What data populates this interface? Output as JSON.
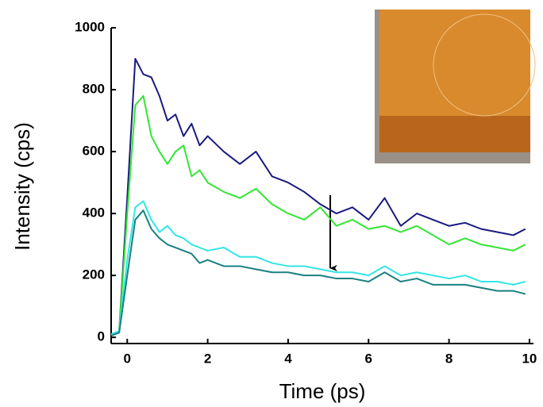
{
  "chart_data": {
    "type": "line",
    "xlabel": "Time (ps)",
    "ylabel": "Intensity (cps)",
    "x": [
      -0.4,
      -0.2,
      0,
      0.2,
      0.4,
      0.6,
      0.8,
      1.0,
      1.2,
      1.4,
      1.6,
      1.8,
      2.0,
      2.4,
      2.8,
      3.2,
      3.6,
      4.0,
      4.4,
      4.8,
      5.2,
      5.6,
      6.0,
      6.4,
      6.8,
      7.2,
      7.6,
      8.0,
      8.4,
      8.8,
      9.2,
      9.6,
      9.9
    ],
    "series": [
      {
        "color": "#1a1a80",
        "values": [
          10,
          20,
          450,
          900,
          850,
          840,
          780,
          700,
          720,
          650,
          690,
          620,
          650,
          600,
          560,
          600,
          520,
          500,
          470,
          430,
          400,
          420,
          380,
          450,
          360,
          400,
          380,
          360,
          370,
          350,
          340,
          330,
          350
        ]
      },
      {
        "color": "#33e633",
        "values": [
          10,
          20,
          400,
          750,
          780,
          650,
          600,
          560,
          600,
          620,
          520,
          540,
          500,
          470,
          450,
          480,
          430,
          400,
          380,
          420,
          360,
          380,
          350,
          360,
          340,
          360,
          330,
          300,
          320,
          300,
          290,
          280,
          300
        ]
      },
      {
        "color": "#33e6e6",
        "values": [
          10,
          20,
          250,
          420,
          440,
          380,
          340,
          360,
          330,
          320,
          300,
          290,
          280,
          290,
          260,
          260,
          240,
          230,
          230,
          220,
          210,
          210,
          200,
          230,
          200,
          210,
          200,
          190,
          200,
          180,
          180,
          170,
          180
        ]
      },
      {
        "color": "#1a8080",
        "values": [
          5,
          15,
          200,
          380,
          410,
          350,
          320,
          300,
          290,
          280,
          270,
          240,
          250,
          230,
          230,
          220,
          210,
          210,
          200,
          200,
          190,
          190,
          180,
          210,
          180,
          190,
          170,
          170,
          170,
          160,
          150,
          150,
          140
        ]
      }
    ],
    "xlim": [
      -0.4,
      10.1
    ],
    "ylim": [
      -20,
      1000
    ],
    "xticks": [
      0,
      2,
      4,
      6,
      8,
      10
    ],
    "yticks": [
      0,
      200,
      400,
      600,
      800,
      1000
    ]
  }
}
